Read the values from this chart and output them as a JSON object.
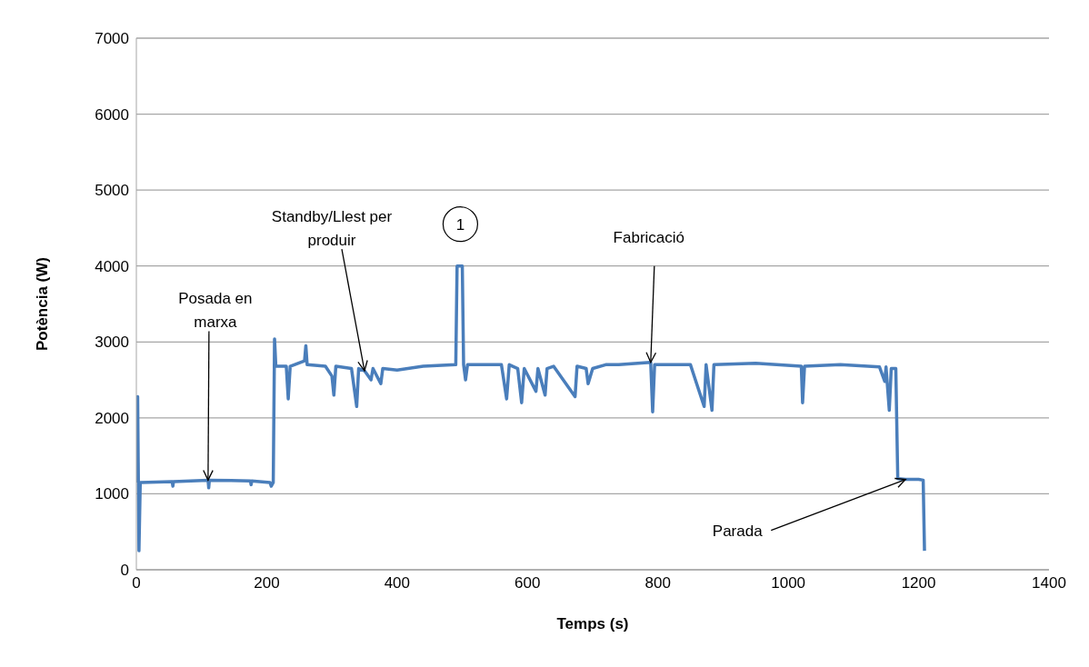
{
  "chart_data": {
    "type": "line",
    "xlabel": "Temps (s)",
    "ylabel": "Potència (W)",
    "xlim": [
      0,
      1400
    ],
    "xticks": [
      0,
      200,
      400,
      600,
      800,
      1000,
      1200,
      1400
    ],
    "ylim": [
      0,
      7000
    ],
    "yticks": [
      0,
      1000,
      2000,
      3000,
      4000,
      5000,
      6000,
      7000
    ],
    "grid": "y",
    "marker": "none",
    "line_style": "solid",
    "series": [
      {
        "color": "#4a7ebb",
        "x": [
          0,
          2,
          4,
          6,
          55,
          56,
          57,
          110,
          111,
          112,
          175,
          176,
          177,
          205,
          207,
          210,
          212,
          214,
          230,
          233,
          236,
          258,
          260,
          262,
          290,
          300,
          303,
          306,
          330,
          338,
          341,
          350,
          360,
          363,
          375,
          378,
          400,
          440,
          490,
          492,
          500,
          502,
          505,
          508,
          560,
          568,
          572,
          585,
          591,
          595,
          613,
          616,
          627,
          630,
          640,
          673,
          676,
          690,
          693,
          700,
          720,
          740,
          789,
          792,
          795,
          850,
          871,
          874,
          883,
          886,
          950,
          1020,
          1022,
          1025,
          1080,
          1140,
          1148,
          1150,
          1155,
          1158,
          1165,
          1168,
          1180,
          1200,
          1207,
          1209
        ],
        "values": [
          1150,
          2280,
          250,
          1150,
          1160,
          1100,
          1160,
          1180,
          1080,
          1180,
          1170,
          1120,
          1170,
          1150,
          1100,
          1150,
          3040,
          2680,
          2680,
          2250,
          2680,
          2750,
          2950,
          2700,
          2680,
          2550,
          2300,
          2680,
          2650,
          2150,
          2650,
          2620,
          2500,
          2650,
          2450,
          2650,
          2630,
          2680,
          2700,
          4000,
          4000,
          2700,
          2500,
          2700,
          2700,
          2250,
          2700,
          2650,
          2200,
          2650,
          2350,
          2650,
          2300,
          2650,
          2680,
          2280,
          2680,
          2650,
          2450,
          2650,
          2700,
          2700,
          2730,
          2080,
          2700,
          2700,
          2150,
          2700,
          2100,
          2700,
          2720,
          2680,
          2200,
          2680,
          2700,
          2670,
          2480,
          2670,
          2100,
          2650,
          2650,
          1200,
          1190,
          1190,
          1180,
          250
        ]
      }
    ],
    "annotations": [
      {
        "text": "Posada en marxa",
        "x": 110,
        "y": 1180
      },
      {
        "text": "Standby/Llest per produir",
        "x": 350,
        "y": 2620
      },
      {
        "text": "1",
        "x": 497,
        "y": 4000
      },
      {
        "text": "Fabricació",
        "x": 789,
        "y": 2730
      },
      {
        "text": "Parada",
        "x": 1180,
        "y": 1190
      }
    ]
  }
}
